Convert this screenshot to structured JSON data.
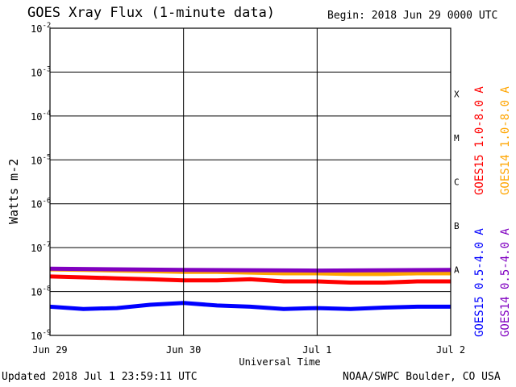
{
  "header": {
    "title": "GOES Xray Flux (1-minute data)",
    "begin": "Begin:  2018 Jun 29 0000 UTC"
  },
  "footer": {
    "updated": "Updated 2018 Jul  1 23:59:11 UTC",
    "credit": "NOAA/SWPC Boulder, CO USA"
  },
  "chart_data": {
    "type": "line",
    "title": "GOES Xray Flux (1-minute data)",
    "xlabel": "Universal Time",
    "ylabel": "Watts m-2",
    "yscale": "log",
    "ylim": [
      1e-09,
      0.01
    ],
    "y_ticks": [
      "10-9",
      "10-8",
      "10-7",
      "10-6",
      "10-5",
      "10-4",
      "10-3",
      "10-2"
    ],
    "x_ticks": [
      "Jun 29",
      "Jun 30",
      "Jul 1",
      "Jul 2"
    ],
    "xlim_days": [
      0,
      3
    ],
    "flare_classes": [
      {
        "label": "A",
        "value": 1e-07
      },
      {
        "label": "B",
        "value": 1e-06
      },
      {
        "label": "C",
        "value": 1e-05
      },
      {
        "label": "M",
        "value": 0.0001
      },
      {
        "label": "X",
        "value": 0.001
      }
    ],
    "grid": true,
    "series": [
      {
        "name": "GOES15 1.0-8.0 A",
        "color": "#ff0000",
        "x": [
          0,
          0.25,
          0.5,
          0.75,
          1.0,
          1.25,
          1.5,
          1.75,
          2.0,
          2.25,
          2.5,
          2.75,
          3.0
        ],
        "y": [
          2.2e-08,
          2.1e-08,
          2e-08,
          1.9e-08,
          1.8e-08,
          1.8e-08,
          1.9e-08,
          1.7e-08,
          1.7e-08,
          1.6e-08,
          1.6e-08,
          1.7e-08,
          1.7e-08
        ]
      },
      {
        "name": "GOES14 1.0-8.0 A",
        "color": "#ffa500",
        "x": [
          0,
          0.25,
          0.5,
          0.75,
          1.0,
          1.25,
          1.5,
          1.75,
          2.0,
          2.25,
          2.5,
          2.75,
          3.0
        ],
        "y": [
          3.2e-08,
          3.1e-08,
          3e-08,
          2.9e-08,
          2.8e-08,
          2.8e-08,
          2.7e-08,
          2.6e-08,
          2.6e-08,
          2.5e-08,
          2.5e-08,
          2.6e-08,
          2.6e-08
        ]
      },
      {
        "name": "GOES15 0.5-4.0 A",
        "color": "#0000ff",
        "x": [
          0,
          0.25,
          0.5,
          0.75,
          1.0,
          1.25,
          1.5,
          1.75,
          2.0,
          2.25,
          2.5,
          2.75,
          3.0
        ],
        "y": [
          4.5e-09,
          4e-09,
          4.2e-09,
          5e-09,
          5.5e-09,
          4.8e-09,
          4.5e-09,
          4e-09,
          4.2e-09,
          4e-09,
          4.3e-09,
          4.5e-09,
          4.5e-09
        ]
      },
      {
        "name": "GOES14 0.5-4.0 A",
        "color": "#8000c0",
        "x": [
          0,
          1.0,
          2.0,
          3.0
        ],
        "y": [
          3.3e-08,
          3.1e-08,
          3e-08,
          3.1e-08
        ]
      }
    ]
  }
}
